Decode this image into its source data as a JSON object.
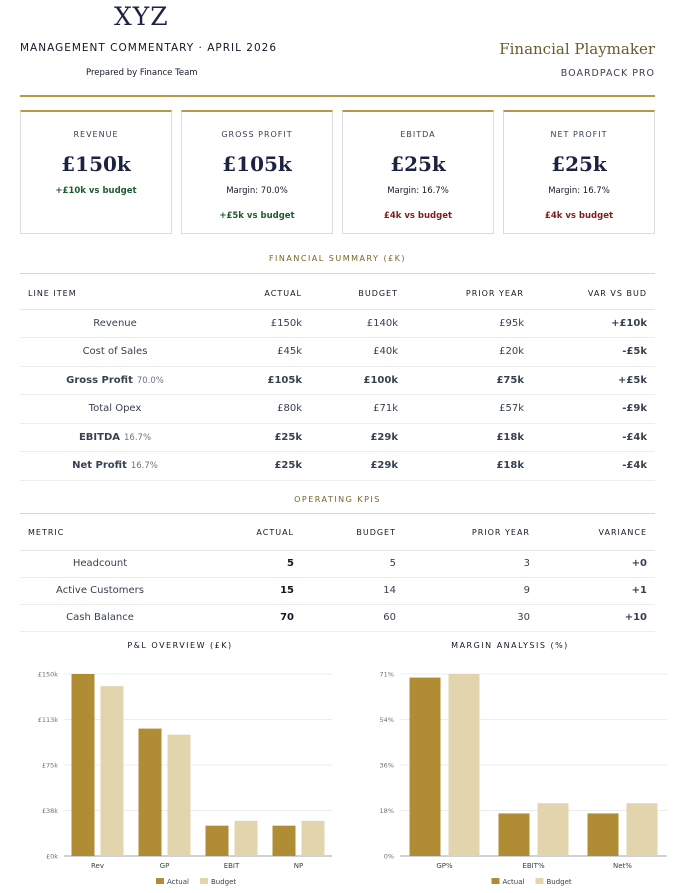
{
  "header": {
    "logo": "XYZ",
    "commentary": "MANAGEMENT COMMENTARY · APRIL 2026",
    "prepared_by": "Prepared by Finance Team",
    "brand": "Financial Playmaker",
    "product": "BOARDPACK PRO"
  },
  "kpi_cards": [
    {
      "label": "REVENUE",
      "value": "£150k",
      "line1": "+£10k vs budget",
      "line2": ""
    },
    {
      "label": "GROSS PROFIT",
      "value": "£105k",
      "line1": "Margin: 70.0%",
      "line2": "+£5k vs budget"
    },
    {
      "label": "EBITDA",
      "value": "£25k",
      "line1": "Margin: 16.7%",
      "line2": "£4k vs budget"
    },
    {
      "label": "NET PROFIT",
      "value": "£25k",
      "line1": "Margin: 16.7%",
      "line2": "£4k vs budget"
    }
  ],
  "financial_summary": {
    "title": "FINANCIAL SUMMARY (£K)",
    "columns": [
      "LINE ITEM",
      "ACTUAL",
      "BUDGET",
      "PRIOR YEAR",
      "VAR VS BUD"
    ],
    "rows": [
      {
        "item": "Revenue",
        "pct": "",
        "actual": "£150k",
        "budget": "£140k",
        "prior": "£95k",
        "var": "+£10k"
      },
      {
        "item": "Cost of Sales",
        "pct": "",
        "actual": "£45k",
        "budget": "£40k",
        "prior": "£20k",
        "var": "-£5k"
      },
      {
        "item": "Gross Profit",
        "pct": "70.0%",
        "actual": "£105k",
        "budget": "£100k",
        "prior": "£75k",
        "var": "+£5k"
      },
      {
        "item": "Total Opex",
        "pct": "",
        "actual": "£80k",
        "budget": "£71k",
        "prior": "£57k",
        "var": "-£9k"
      },
      {
        "item": "EBITDA",
        "pct": "16.7%",
        "actual": "£25k",
        "budget": "£29k",
        "prior": "£18k",
        "var": "-£4k"
      },
      {
        "item": "Net Profit",
        "pct": "16.7%",
        "actual": "£25k",
        "budget": "£29k",
        "prior": "£18k",
        "var": "-£4k"
      }
    ]
  },
  "operating_kpis": {
    "title": "OPERATING KPIS",
    "columns": [
      "METRIC",
      "ACTUAL",
      "BUDGET",
      "PRIOR YEAR",
      "VARIANCE"
    ],
    "rows": [
      {
        "metric": "Headcount",
        "actual": "5",
        "budget": "5",
        "prior": "3",
        "variance": "+0"
      },
      {
        "metric": "Active Customers",
        "actual": "15",
        "budget": "14",
        "prior": "9",
        "variance": "+1"
      },
      {
        "metric": "Cash Balance",
        "actual": "70",
        "budget": "60",
        "prior": "30",
        "variance": "+10"
      }
    ]
  },
  "colors": {
    "gold": "#b08d35",
    "sand": "#e2d4ac",
    "positive": "#1f5a32",
    "negative": "#7f1d1d"
  },
  "chart_data": [
    {
      "type": "bar",
      "title": "P&L OVERVIEW (£K)",
      "categories": [
        "Rev",
        "GP",
        "EBIT",
        "NP"
      ],
      "series": [
        {
          "name": "Actual",
          "values": [
            150,
            105,
            25,
            25
          ]
        },
        {
          "name": "Budget",
          "values": [
            140,
            100,
            29,
            29
          ]
        }
      ],
      "y_ticks": [
        "£0k",
        "£38k",
        "£75k",
        "£113k",
        "£150k"
      ],
      "ylim": [
        0,
        150
      ],
      "grid": true,
      "legend": "bottom"
    },
    {
      "type": "bar",
      "title": "MARGIN ANALYSIS (%)",
      "categories": [
        "GP%",
        "EBIT%",
        "Net%"
      ],
      "series": [
        {
          "name": "Actual",
          "values": [
            70,
            16.7,
            16.7
          ]
        },
        {
          "name": "Budget",
          "values": [
            71.4,
            20.7,
            20.7
          ]
        }
      ],
      "y_ticks": [
        "0%",
        "18%",
        "36%",
        "54%",
        "71%"
      ],
      "ylim": [
        0,
        71.4
      ],
      "grid": true,
      "legend": "bottom"
    }
  ]
}
